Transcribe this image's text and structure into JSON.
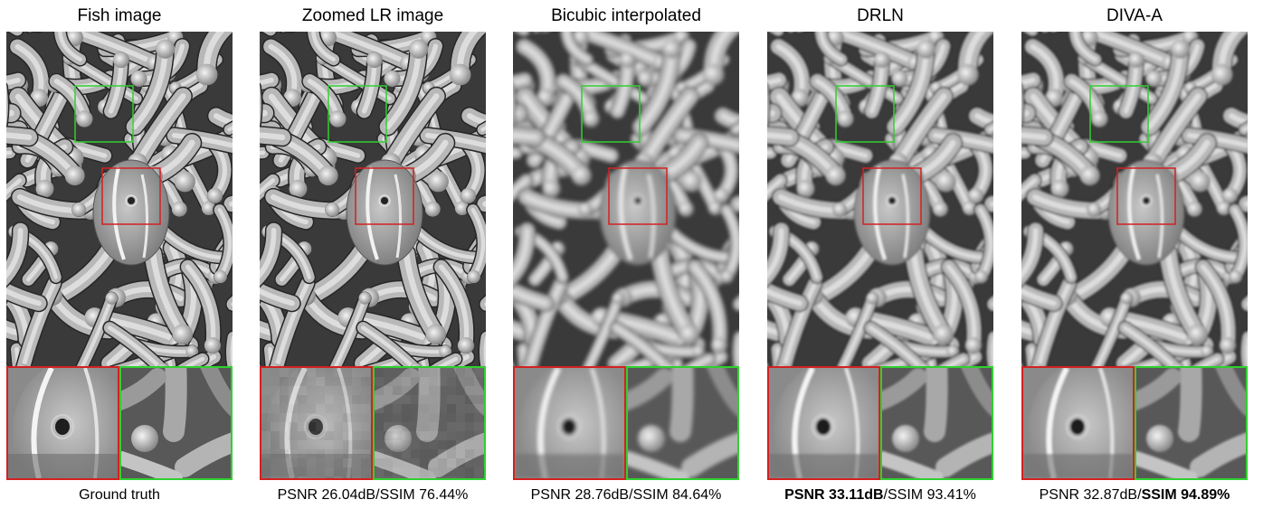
{
  "panels": [
    {
      "title": "Fish image",
      "caption_plain": "Ground truth",
      "psnr": "",
      "ssim": "",
      "bold": "none"
    },
    {
      "title": "Zoomed LR image",
      "psnr": "PSNR 26.04dB",
      "ssim": "SSIM 76.44%",
      "bold": "none"
    },
    {
      "title": "Bicubic interpolated",
      "psnr": "PSNR 28.76dB",
      "ssim": "SSIM 84.64%",
      "bold": "none"
    },
    {
      "title": "DRLN",
      "psnr": "PSNR 33.11dB",
      "ssim": "SSIM 93.41%",
      "bold": "psnr"
    },
    {
      "title": "DIVA-A",
      "psnr": "PSNR 32.87dB",
      "ssim": "SSIM 94.89%",
      "bold": "ssim"
    }
  ],
  "separator": "/",
  "colors": {
    "red_box": "#d42020",
    "green_box": "#30d030",
    "tentacle_light": "#e0e0e0",
    "background_dark": "#404040"
  }
}
